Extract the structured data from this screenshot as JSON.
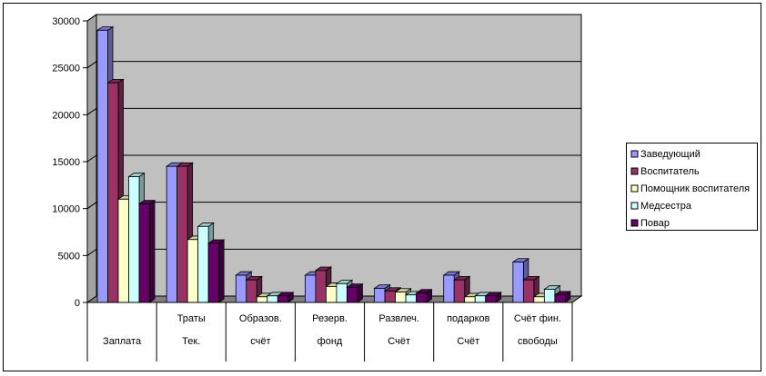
{
  "chart_data": {
    "type": "bar",
    "three_d": true,
    "categories": [
      [
        "Заплата"
      ],
      [
        "Траты",
        "Тек."
      ],
      [
        "Образов.",
        "счёт"
      ],
      [
        "Резерв.",
        "фонд"
      ],
      [
        "Развлеч.",
        "Счёт"
      ],
      [
        "подарков",
        "Счёт"
      ],
      [
        "Счёт фин.",
        "свободы"
      ]
    ],
    "series": [
      {
        "name": "Заведующий",
        "color": "#9999ff",
        "values": [
          29000,
          14500,
          2900,
          2900,
          1500,
          2900,
          4300
        ]
      },
      {
        "name": "Воспитатель",
        "color": "#993366",
        "values": [
          23400,
          14500,
          2400,
          3400,
          1200,
          2400,
          2400
        ]
      },
      {
        "name": "Помощник воспитателя",
        "color": "#ffffcc",
        "values": [
          11000,
          6700,
          600,
          1700,
          1100,
          600,
          600
        ]
      },
      {
        "name": "Медсестра",
        "color": "#ccffff",
        "values": [
          13400,
          8100,
          700,
          2000,
          800,
          700,
          1400
        ]
      },
      {
        "name": "Повар",
        "color": "#660066",
        "values": [
          10500,
          6300,
          700,
          1600,
          1000,
          700,
          800
        ]
      }
    ],
    "ylim": [
      0,
      30000
    ],
    "yticks": [
      "0",
      "5000",
      "10000",
      "15000",
      "20000",
      "25000",
      "30000"
    ],
    "grid": true,
    "legend_position": "right",
    "wall_color": "#c0c0c0",
    "floor_color": "#808080"
  }
}
